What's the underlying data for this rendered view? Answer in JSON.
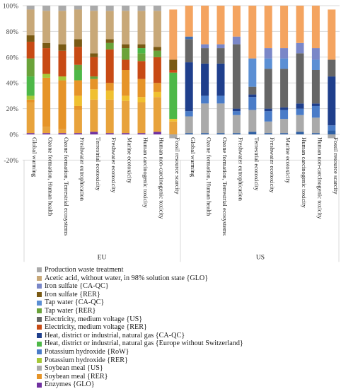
{
  "chart_data": {
    "type": "bar",
    "stacked": true,
    "title": "",
    "xlabel": "",
    "ylabel": "",
    "ylim": [
      -20,
      100
    ],
    "yticks": [
      "-20%",
      "0%",
      "20%",
      "40%",
      "60%",
      "80%",
      "100%"
    ],
    "grid": true,
    "legend_position": "bottom",
    "groups": [
      {
        "name": "EU",
        "categories": [
          "Global warming",
          "Ozone formation, Human health",
          "Ozone formation, Terrestrial ecosystems",
          "Freshwater eutrophication",
          "Terrestrial ecotoxicity",
          "Freshwater ecotoxicity",
          "Marine ecotoxicity",
          "Human carcinogenic toxicity",
          "Human non-carcinogenic toxicity",
          "Fossil resource scarcity"
        ]
      },
      {
        "name": "US",
        "categories": [
          "Global warming",
          "Ozone formation, Human health",
          "Ozone formation, Terrestrial ecosystems",
          "Freshwater eutrophication",
          "Terrestrial ecotoxicity",
          "Freshwater ecotoxicity",
          "Marine ecotoxicity",
          "Human carcinogenic toxicity",
          "Human non-carcinogenic toxicity",
          "Fossil resource scarcity"
        ]
      }
    ],
    "bar_stacks": [
      [
        [
          "#7030a0",
          1
        ],
        [
          "#e8a33c",
          24
        ],
        [
          "#e69428",
          2
        ],
        [
          "#a6c838",
          3
        ],
        [
          "#4db848",
          15
        ],
        [
          "#6aa33a",
          14
        ],
        [
          "#c84a14",
          13
        ],
        [
          "#7a5a14",
          5
        ],
        [
          "#c8a878",
          20
        ],
        [
          "#aaaaaa",
          3
        ]
      ],
      [
        [
          "#7030a0",
          1
        ],
        [
          "#e8a33c",
          5
        ],
        [
          "#e69428",
          38
        ],
        [
          "#a6c838",
          3
        ],
        [
          "#c84a14",
          20
        ],
        [
          "#7a5a14",
          4
        ],
        [
          "#c8a878",
          25
        ],
        [
          "#aaaaaa",
          4
        ]
      ],
      [
        [
          "#7030a0",
          1
        ],
        [
          "#e8a33c",
          3
        ],
        [
          "#e69428",
          38
        ],
        [
          "#a6c838",
          3
        ],
        [
          "#c84a14",
          20
        ],
        [
          "#7a5a14",
          5
        ],
        [
          "#c8a878",
          26
        ],
        [
          "#aaaaaa",
          4
        ]
      ],
      [
        [
          "#7030a0",
          1
        ],
        [
          "#e8a33c",
          18
        ],
        [
          "#e69428",
          3
        ],
        [
          "#f0c030",
          8
        ],
        [
          "#e69428",
          12
        ],
        [
          "#4db848",
          8
        ],
        [
          "#6aa33a",
          4
        ],
        [
          "#c84a14",
          14
        ],
        [
          "#7a5a14",
          6
        ],
        [
          "#c8a878",
          23
        ],
        [
          "#aaaaaa",
          3
        ]
      ],
      [
        [
          "#7030a0",
          2
        ],
        [
          "#e8a33c",
          25
        ],
        [
          "#f0c030",
          8
        ],
        [
          "#e69428",
          8
        ],
        [
          "#6aa33a",
          2
        ],
        [
          "#c84a14",
          15
        ],
        [
          "#7a5a14",
          3
        ],
        [
          "#c8a878",
          33
        ],
        [
          "#aaaaaa",
          4
        ]
      ],
      [
        [
          "#7030a0",
          1
        ],
        [
          "#e8a33c",
          26
        ],
        [
          "#f0c030",
          7
        ],
        [
          "#e69428",
          6
        ],
        [
          "#c84a14",
          26
        ],
        [
          "#6aa33a",
          5
        ],
        [
          "#7a5a14",
          3
        ],
        [
          "#c8a878",
          22
        ],
        [
          "#aaaaaa",
          4
        ]
      ],
      [
        [
          "#7030a0",
          1
        ],
        [
          "#e8a33c",
          25
        ],
        [
          "#f0c030",
          4
        ],
        [
          "#e69428",
          20
        ],
        [
          "#c84a14",
          8
        ],
        [
          "#6aa33a",
          9
        ],
        [
          "#7a5a14",
          3
        ],
        [
          "#c8a878",
          26
        ],
        [
          "#aaaaaa",
          4
        ]
      ],
      [
        [
          "#7030a0",
          1
        ],
        [
          "#e8a33c",
          24
        ],
        [
          "#f0c030",
          4
        ],
        [
          "#e69428",
          14
        ],
        [
          "#c84a14",
          14
        ],
        [
          "#6aa33a",
          6
        ],
        [
          "#4db848",
          4
        ],
        [
          "#7a5a14",
          3
        ],
        [
          "#c8a878",
          26
        ],
        [
          "#aaaaaa",
          4
        ]
      ],
      [
        [
          "#7030a0",
          2
        ],
        [
          "#e8a33c",
          27
        ],
        [
          "#f0c030",
          4
        ],
        [
          "#e69428",
          7
        ],
        [
          "#c84a14",
          20
        ],
        [
          "#6aa33a",
          5
        ],
        [
          "#7a5a14",
          3
        ],
        [
          "#c8a878",
          28
        ],
        [
          "#aaaaaa",
          4
        ]
      ],
      [
        [
          "#aaaaaa",
          -3
        ],
        [
          "#e8a33c",
          10
        ],
        [
          "#f0c030",
          2
        ],
        [
          "#4db848",
          36
        ],
        [
          "#c84a14",
          2
        ],
        [
          "#7a5a14",
          8
        ],
        [
          "#f4a460",
          39
        ]
      ],
      [
        [
          "#2e5fa3",
          1
        ],
        [
          "#aaaaaa",
          13
        ],
        [
          "#4a7cc8",
          4
        ],
        [
          "#1f3f8c",
          38
        ],
        [
          "#666666",
          18
        ],
        [
          "#3f6fb4",
          2
        ],
        [
          "#f4a460",
          24
        ]
      ],
      [
        [
          "#2e5fa3",
          1
        ],
        [
          "#aaaaaa",
          23
        ],
        [
          "#4a7cc8",
          6
        ],
        [
          "#1f3f8c",
          25
        ],
        [
          "#666666",
          12
        ],
        [
          "#7a87c8",
          3
        ],
        [
          "#f4a460",
          30
        ]
      ],
      [
        [
          "#2e5fa3",
          1
        ],
        [
          "#aaaaaa",
          23
        ],
        [
          "#4a7cc8",
          6
        ],
        [
          "#1f3f8c",
          25
        ],
        [
          "#666666",
          12
        ],
        [
          "#7a87c8",
          3
        ],
        [
          "#f4a460",
          30
        ]
      ],
      [
        [
          "#2e5fa3",
          1
        ],
        [
          "#aaaaaa",
          14
        ],
        [
          "#4a7cc8",
          3
        ],
        [
          "#1f3f8c",
          2
        ],
        [
          "#666666",
          50
        ],
        [
          "#7a87c8",
          6
        ],
        [
          "#f4a460",
          24
        ]
      ],
      [
        [
          "#2e5fa3",
          2
        ],
        [
          "#aaaaaa",
          17
        ],
        [
          "#4a7cc8",
          10
        ],
        [
          "#1f3f8c",
          2
        ],
        [
          "#666666",
          6
        ],
        [
          "#5b8fd4",
          22
        ],
        [
          "#f4a460",
          41
        ]
      ],
      [
        [
          "#2e5fa3",
          1
        ],
        [
          "#aaaaaa",
          9
        ],
        [
          "#4a7cc8",
          8
        ],
        [
          "#1f3f8c",
          2
        ],
        [
          "#666666",
          31
        ],
        [
          "#5b8fd4",
          8
        ],
        [
          "#7a87c8",
          8
        ],
        [
          "#f4a460",
          33
        ]
      ],
      [
        [
          "#2e5fa3",
          1
        ],
        [
          "#aaaaaa",
          11
        ],
        [
          "#4a7cc8",
          7
        ],
        [
          "#1f3f8c",
          2
        ],
        [
          "#666666",
          30
        ],
        [
          "#5b8fd4",
          8
        ],
        [
          "#7a87c8",
          8
        ],
        [
          "#f4a460",
          33
        ]
      ],
      [
        [
          "#2e5fa3",
          2
        ],
        [
          "#aaaaaa",
          13
        ],
        [
          "#4a7cc8",
          5
        ],
        [
          "#1f3f8c",
          4
        ],
        [
          "#666666",
          39
        ],
        [
          "#7a87c8",
          8
        ],
        [
          "#f4a460",
          29
        ]
      ],
      [
        [
          "#2e5fa3",
          1
        ],
        [
          "#aaaaaa",
          12
        ],
        [
          "#4a7cc8",
          9
        ],
        [
          "#1f3f8c",
          2
        ],
        [
          "#666666",
          26
        ],
        [
          "#5b8fd4",
          8
        ],
        [
          "#7a87c8",
          9
        ],
        [
          "#f4a460",
          33
        ]
      ],
      [
        [
          "#aaaaaa",
          -3
        ],
        [
          "#2e5fa3",
          3
        ],
        [
          "#4a7cc8",
          4
        ],
        [
          "#1f3f8c",
          38
        ],
        [
          "#666666",
          13
        ],
        [
          "#f4a460",
          39
        ]
      ]
    ],
    "legend": [
      {
        "label": "Production waste treatment",
        "color": "#aaaaaa"
      },
      {
        "label": "Acetic acid, without water, in 98% solution state {GLO}",
        "color": "#c8a878"
      },
      {
        "label": "Iron sulfate {CA-QC}",
        "color": "#7a87c8"
      },
      {
        "label": "Iron sulfate {RER}",
        "color": "#7a5a14"
      },
      {
        "label": "Tap water {CA-QC}",
        "color": "#5b8fd4"
      },
      {
        "label": "Tap water {RER}",
        "color": "#6aa33a"
      },
      {
        "label": "Electricity, medium voltage {US}",
        "color": "#666666"
      },
      {
        "label": "Electricity, medium voltage {RER}",
        "color": "#c84a14"
      },
      {
        "label": "Heat, district or industrial, natural gas {CA-QC}",
        "color": "#1f3f8c"
      },
      {
        "label": "Heat, district or industrial, natural gas {Europe without Switzerland}",
        "color": "#4db848"
      },
      {
        "label": "Potassium hydroxide {RoW}",
        "color": "#4a7cc8"
      },
      {
        "label": "Potassium hydroxide {RER}",
        "color": "#a6c838"
      },
      {
        "label": "Soybean meal {US}",
        "color": "#aaaaaa"
      },
      {
        "label": "Soybean meal {RER}",
        "color": "#e69428"
      },
      {
        "label": "Enzymes {GLO}",
        "color": "#7030a0"
      }
    ]
  }
}
